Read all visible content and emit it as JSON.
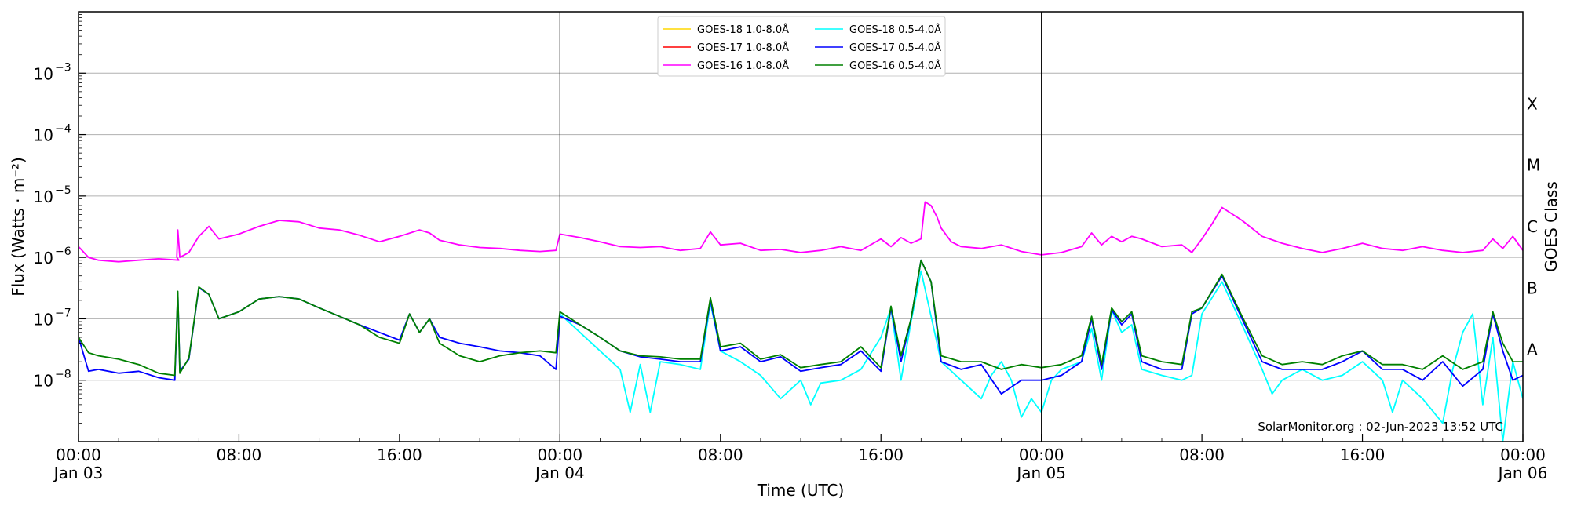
{
  "chart_data": {
    "type": "line",
    "xlabel": "Time (UTC)",
    "ylabel": "Flux (Watts · m⁻²)",
    "ylabel_right": "GOES Class",
    "y_scale": "log",
    "ylim": [
      1e-09,
      0.01
    ],
    "xlim_hours": [
      0,
      72
    ],
    "grid": true,
    "legend_position": "top-center",
    "x_ticks": [
      {
        "hour": 0,
        "time": "00:00",
        "date": "Jan 03"
      },
      {
        "hour": 8,
        "time": "08:00",
        "date": ""
      },
      {
        "hour": 16,
        "time": "16:00",
        "date": ""
      },
      {
        "hour": 24,
        "time": "00:00",
        "date": "Jan 04"
      },
      {
        "hour": 32,
        "time": "08:00",
        "date": ""
      },
      {
        "hour": 40,
        "time": "16:00",
        "date": ""
      },
      {
        "hour": 48,
        "time": "00:00",
        "date": "Jan 05"
      },
      {
        "hour": 56,
        "time": "08:00",
        "date": ""
      },
      {
        "hour": 64,
        "time": "16:00",
        "date": ""
      },
      {
        "hour": 72,
        "time": "00:00",
        "date": "Jan 06"
      }
    ],
    "y_ticks": [
      {
        "exp": -8,
        "label": "10",
        "sup": "−8"
      },
      {
        "exp": -7,
        "label": "10",
        "sup": "−7"
      },
      {
        "exp": -6,
        "label": "10",
        "sup": "−6"
      },
      {
        "exp": -5,
        "label": "10",
        "sup": "−5"
      },
      {
        "exp": -4,
        "label": "10",
        "sup": "−4"
      },
      {
        "exp": -3,
        "label": "10",
        "sup": "−3"
      }
    ],
    "goes_classes": [
      {
        "label": "A",
        "exp": -7.5
      },
      {
        "label": "B",
        "exp": -6.5
      },
      {
        "label": "C",
        "exp": -5.5
      },
      {
        "label": "M",
        "exp": -4.5
      },
      {
        "label": "X",
        "exp": -3.5
      }
    ],
    "day_boundaries_hours": [
      24,
      48
    ],
    "annotation": "SolarMonitor.org : 02-Jun-2023 13:52 UTC",
    "series": [
      {
        "name": "GOES-18 1.0-8.0Å",
        "color": "#ffd700",
        "x": [],
        "y": []
      },
      {
        "name": "GOES-17 1.0-8.0Å",
        "color": "#ff0000",
        "x": [],
        "y": []
      },
      {
        "name": "GOES-16 1.0-8.0Å",
        "color": "#ff00ff",
        "x": [
          0,
          0.5,
          1,
          2,
          3,
          4,
          5,
          4.9,
          4.95,
          5.05,
          5.5,
          6,
          6.5,
          7,
          8,
          9,
          10,
          11,
          12,
          13,
          14,
          15,
          16,
          17,
          17.5,
          18,
          19,
          20,
          21,
          22,
          23,
          23.8,
          24,
          25,
          26,
          27,
          28,
          29,
          30,
          31,
          31.5,
          32,
          33,
          34,
          35,
          36,
          37,
          38,
          39,
          40,
          40.5,
          41,
          41.5,
          42,
          42.2,
          42.5,
          42.8,
          43,
          43.5,
          44,
          45,
          46,
          47,
          48,
          49,
          50,
          50.5,
          51,
          51.5,
          52,
          52.5,
          53,
          54,
          55,
          55.5,
          56,
          56.5,
          57,
          58,
          59,
          60,
          61,
          62,
          63,
          64,
          65,
          66,
          67,
          68,
          69,
          70,
          70.5,
          71,
          71.5,
          72
        ],
        "y": [
          1.5e-06,
          1e-06,
          9e-07,
          8.5e-07,
          9e-07,
          9.5e-07,
          9e-07,
          1e-06,
          2.8e-06,
          1e-06,
          1.2e-06,
          2.2e-06,
          3.2e-06,
          2e-06,
          2.4e-06,
          3.2e-06,
          4e-06,
          3.8e-06,
          3e-06,
          2.8e-06,
          2.3e-06,
          1.8e-06,
          2.2e-06,
          2.8e-06,
          2.5e-06,
          1.9e-06,
          1.6e-06,
          1.45e-06,
          1.4e-06,
          1.3e-06,
          1.25e-06,
          1.3e-06,
          2.4e-06,
          2.1e-06,
          1.8e-06,
          1.5e-06,
          1.45e-06,
          1.5e-06,
          1.3e-06,
          1.4e-06,
          2.6e-06,
          1.6e-06,
          1.7e-06,
          1.3e-06,
          1.35e-06,
          1.2e-06,
          1.3e-06,
          1.5e-06,
          1.3e-06,
          2e-06,
          1.5e-06,
          2.1e-06,
          1.7e-06,
          2e-06,
          8e-06,
          7e-06,
          4.5e-06,
          3e-06,
          1.8e-06,
          1.5e-06,
          1.4e-06,
          1.6e-06,
          1.25e-06,
          1.1e-06,
          1.2e-06,
          1.5e-06,
          2.5e-06,
          1.6e-06,
          2.2e-06,
          1.8e-06,
          2.2e-06,
          2e-06,
          1.5e-06,
          1.6e-06,
          1.2e-06,
          2e-06,
          3.5e-06,
          6.5e-06,
          4e-06,
          2.2e-06,
          1.7e-06,
          1.4e-06,
          1.2e-06,
          1.4e-06,
          1.7e-06,
          1.4e-06,
          1.3e-06,
          1.5e-06,
          1.3e-06,
          1.2e-06,
          1.3e-06,
          2e-06,
          1.4e-06,
          2.2e-06,
          1.3e-06
        ]
      },
      {
        "name": "GOES-18 0.5-4.0Å",
        "color": "#00ffff",
        "x": [
          24,
          25,
          26,
          27,
          27.5,
          28,
          28.5,
          29,
          30,
          31,
          31.5,
          32,
          33,
          34,
          35,
          36,
          36.5,
          37,
          38,
          39,
          40,
          40.5,
          41,
          41.5,
          42,
          43,
          44,
          45,
          45.5,
          46,
          46.5,
          47,
          47.5,
          48,
          48.5,
          49,
          50,
          50.5,
          51,
          51.5,
          52,
          52.5,
          53,
          54,
          55,
          55.5,
          56,
          57,
          58,
          59,
          59.5,
          60,
          61,
          62,
          63,
          64,
          65,
          65.5,
          66,
          67,
          68,
          68.5,
          69,
          69.5,
          70,
          70.5,
          71,
          71.5,
          72
        ],
        "y": [
          1.2e-07,
          6e-08,
          3e-08,
          1.5e-08,
          3e-09,
          1.8e-08,
          3e-09,
          2e-08,
          1.8e-08,
          1.5e-08,
          1.8e-07,
          3e-08,
          2e-08,
          1.2e-08,
          5e-09,
          1e-08,
          4e-09,
          9e-09,
          1e-08,
          1.5e-08,
          5e-08,
          1.5e-07,
          1e-08,
          9e-08,
          6e-07,
          2e-08,
          1e-08,
          5e-09,
          1.2e-08,
          2e-08,
          1e-08,
          2.5e-09,
          5e-09,
          3e-09,
          1e-08,
          1.5e-08,
          2e-08,
          7e-08,
          1e-08,
          1.4e-07,
          6e-08,
          8e-08,
          1.5e-08,
          1.2e-08,
          1e-08,
          1.2e-08,
          1.2e-07,
          4e-07,
          8e-08,
          1.5e-08,
          6e-09,
          1e-08,
          1.5e-08,
          1e-08,
          1.2e-08,
          2e-08,
          1e-08,
          3e-09,
          1e-08,
          5e-09,
          2e-09,
          1.5e-08,
          6e-08,
          1.2e-07,
          4e-09,
          5e-08,
          1e-09,
          2e-08,
          5e-09
        ]
      },
      {
        "name": "GOES-17 0.5-4.0Å",
        "color": "#0000ff",
        "x": [
          0,
          0.5,
          1,
          2,
          3,
          4,
          4.8,
          4.95,
          5.05,
          5.5,
          6,
          6.5,
          7,
          8,
          9,
          10,
          11,
          12,
          13,
          14,
          15,
          16,
          16.5,
          17,
          17.5,
          18,
          19,
          20,
          21,
          22,
          23,
          23.8,
          24,
          25,
          26,
          27,
          28,
          29,
          30,
          31,
          31.5,
          32,
          33,
          34,
          35,
          36,
          37,
          38,
          39,
          40,
          40.5,
          41,
          41.5,
          42,
          42.5,
          43,
          44,
          45,
          46,
          47,
          48,
          49,
          50,
          50.5,
          51,
          51.5,
          52,
          52.5,
          53,
          54,
          55,
          55.5,
          56,
          57,
          58,
          59,
          60,
          61,
          62,
          63,
          64,
          65,
          66,
          67,
          68,
          69,
          70,
          70.5,
          71,
          71.5,
          72
        ],
        "y": [
          5e-08,
          1.4e-08,
          1.5e-08,
          1.3e-08,
          1.4e-08,
          1.1e-08,
          1e-08,
          2.6e-07,
          1.4e-08,
          2.2e-08,
          3.2e-07,
          2.5e-07,
          1e-07,
          1.3e-07,
          2.1e-07,
          2.3e-07,
          2.1e-07,
          1.5e-07,
          1.1e-07,
          8e-08,
          6e-08,
          4.5e-08,
          1.2e-07,
          6e-08,
          1e-07,
          5e-08,
          4e-08,
          3.5e-08,
          3e-08,
          2.8e-08,
          2.5e-08,
          1.5e-08,
          1.1e-07,
          8e-08,
          5e-08,
          3e-08,
          2.4e-08,
          2.2e-08,
          2e-08,
          2e-08,
          2e-07,
          3e-08,
          3.5e-08,
          2e-08,
          2.4e-08,
          1.4e-08,
          1.6e-08,
          1.8e-08,
          3e-08,
          1.4e-08,
          1.5e-07,
          2e-08,
          1e-07,
          9e-07,
          4e-07,
          2e-08,
          1.5e-08,
          1.8e-08,
          6e-09,
          1e-08,
          1e-08,
          1.2e-08,
          2e-08,
          1e-07,
          1.5e-08,
          1.4e-07,
          8e-08,
          1.2e-07,
          2e-08,
          1.5e-08,
          1.5e-08,
          1.2e-07,
          1.5e-07,
          5e-07,
          1e-07,
          2e-08,
          1.5e-08,
          1.5e-08,
          1.5e-08,
          2e-08,
          3e-08,
          1.5e-08,
          1.5e-08,
          1e-08,
          2e-08,
          8e-09,
          1.5e-08,
          1.2e-07,
          3e-08,
          1e-08,
          1.2e-08
        ]
      },
      {
        "name": "GOES-16 0.5-4.0Å",
        "color": "#008000",
        "x": [
          0,
          0.5,
          1,
          2,
          3,
          4,
          4.8,
          4.95,
          5.05,
          5.5,
          6,
          6.5,
          7,
          8,
          9,
          10,
          11,
          12,
          13,
          14,
          15,
          16,
          16.5,
          17,
          17.5,
          18,
          19,
          20,
          21,
          22,
          23,
          23.8,
          24,
          25,
          26,
          27,
          28,
          29,
          30,
          31,
          31.5,
          32,
          33,
          34,
          35,
          36,
          37,
          38,
          39,
          40,
          40.5,
          41,
          41.5,
          42,
          42.5,
          43,
          44,
          45,
          46,
          47,
          48,
          49,
          50,
          50.5,
          51,
          51.5,
          52,
          52.5,
          53,
          54,
          55,
          55.5,
          56,
          57,
          58,
          59,
          60,
          61,
          62,
          63,
          64,
          65,
          66,
          67,
          68,
          69,
          70,
          70.5,
          71,
          71.5,
          72
        ],
        "y": [
          5e-08,
          2.8e-08,
          2.5e-08,
          2.2e-08,
          1.8e-08,
          1.3e-08,
          1.2e-08,
          2.8e-07,
          1.3e-08,
          2.3e-08,
          3.3e-07,
          2.5e-07,
          1e-07,
          1.3e-07,
          2.1e-07,
          2.3e-07,
          2.1e-07,
          1.5e-07,
          1.1e-07,
          8e-08,
          5e-08,
          4e-08,
          1.2e-07,
          6e-08,
          1e-07,
          4e-08,
          2.5e-08,
          2e-08,
          2.5e-08,
          2.8e-08,
          3e-08,
          2.8e-08,
          1.3e-07,
          8e-08,
          5e-08,
          3e-08,
          2.5e-08,
          2.4e-08,
          2.2e-08,
          2.2e-08,
          2.2e-07,
          3.5e-08,
          4e-08,
          2.2e-08,
          2.6e-08,
          1.6e-08,
          1.8e-08,
          2e-08,
          3.5e-08,
          1.6e-08,
          1.6e-07,
          2.5e-08,
          1e-07,
          9e-07,
          4e-07,
          2.5e-08,
          2e-08,
          2e-08,
          1.5e-08,
          1.8e-08,
          1.6e-08,
          1.8e-08,
          2.5e-08,
          1.1e-07,
          1.8e-08,
          1.5e-07,
          9e-08,
          1.3e-07,
          2.5e-08,
          2e-08,
          1.8e-08,
          1.3e-07,
          1.5e-07,
          5.3e-07,
          1.1e-07,
          2.5e-08,
          1.8e-08,
          2e-08,
          1.8e-08,
          2.5e-08,
          3e-08,
          1.8e-08,
          1.8e-08,
          1.5e-08,
          2.5e-08,
          1.5e-08,
          2e-08,
          1.3e-07,
          4e-08,
          2e-08,
          2e-08
        ]
      }
    ]
  }
}
